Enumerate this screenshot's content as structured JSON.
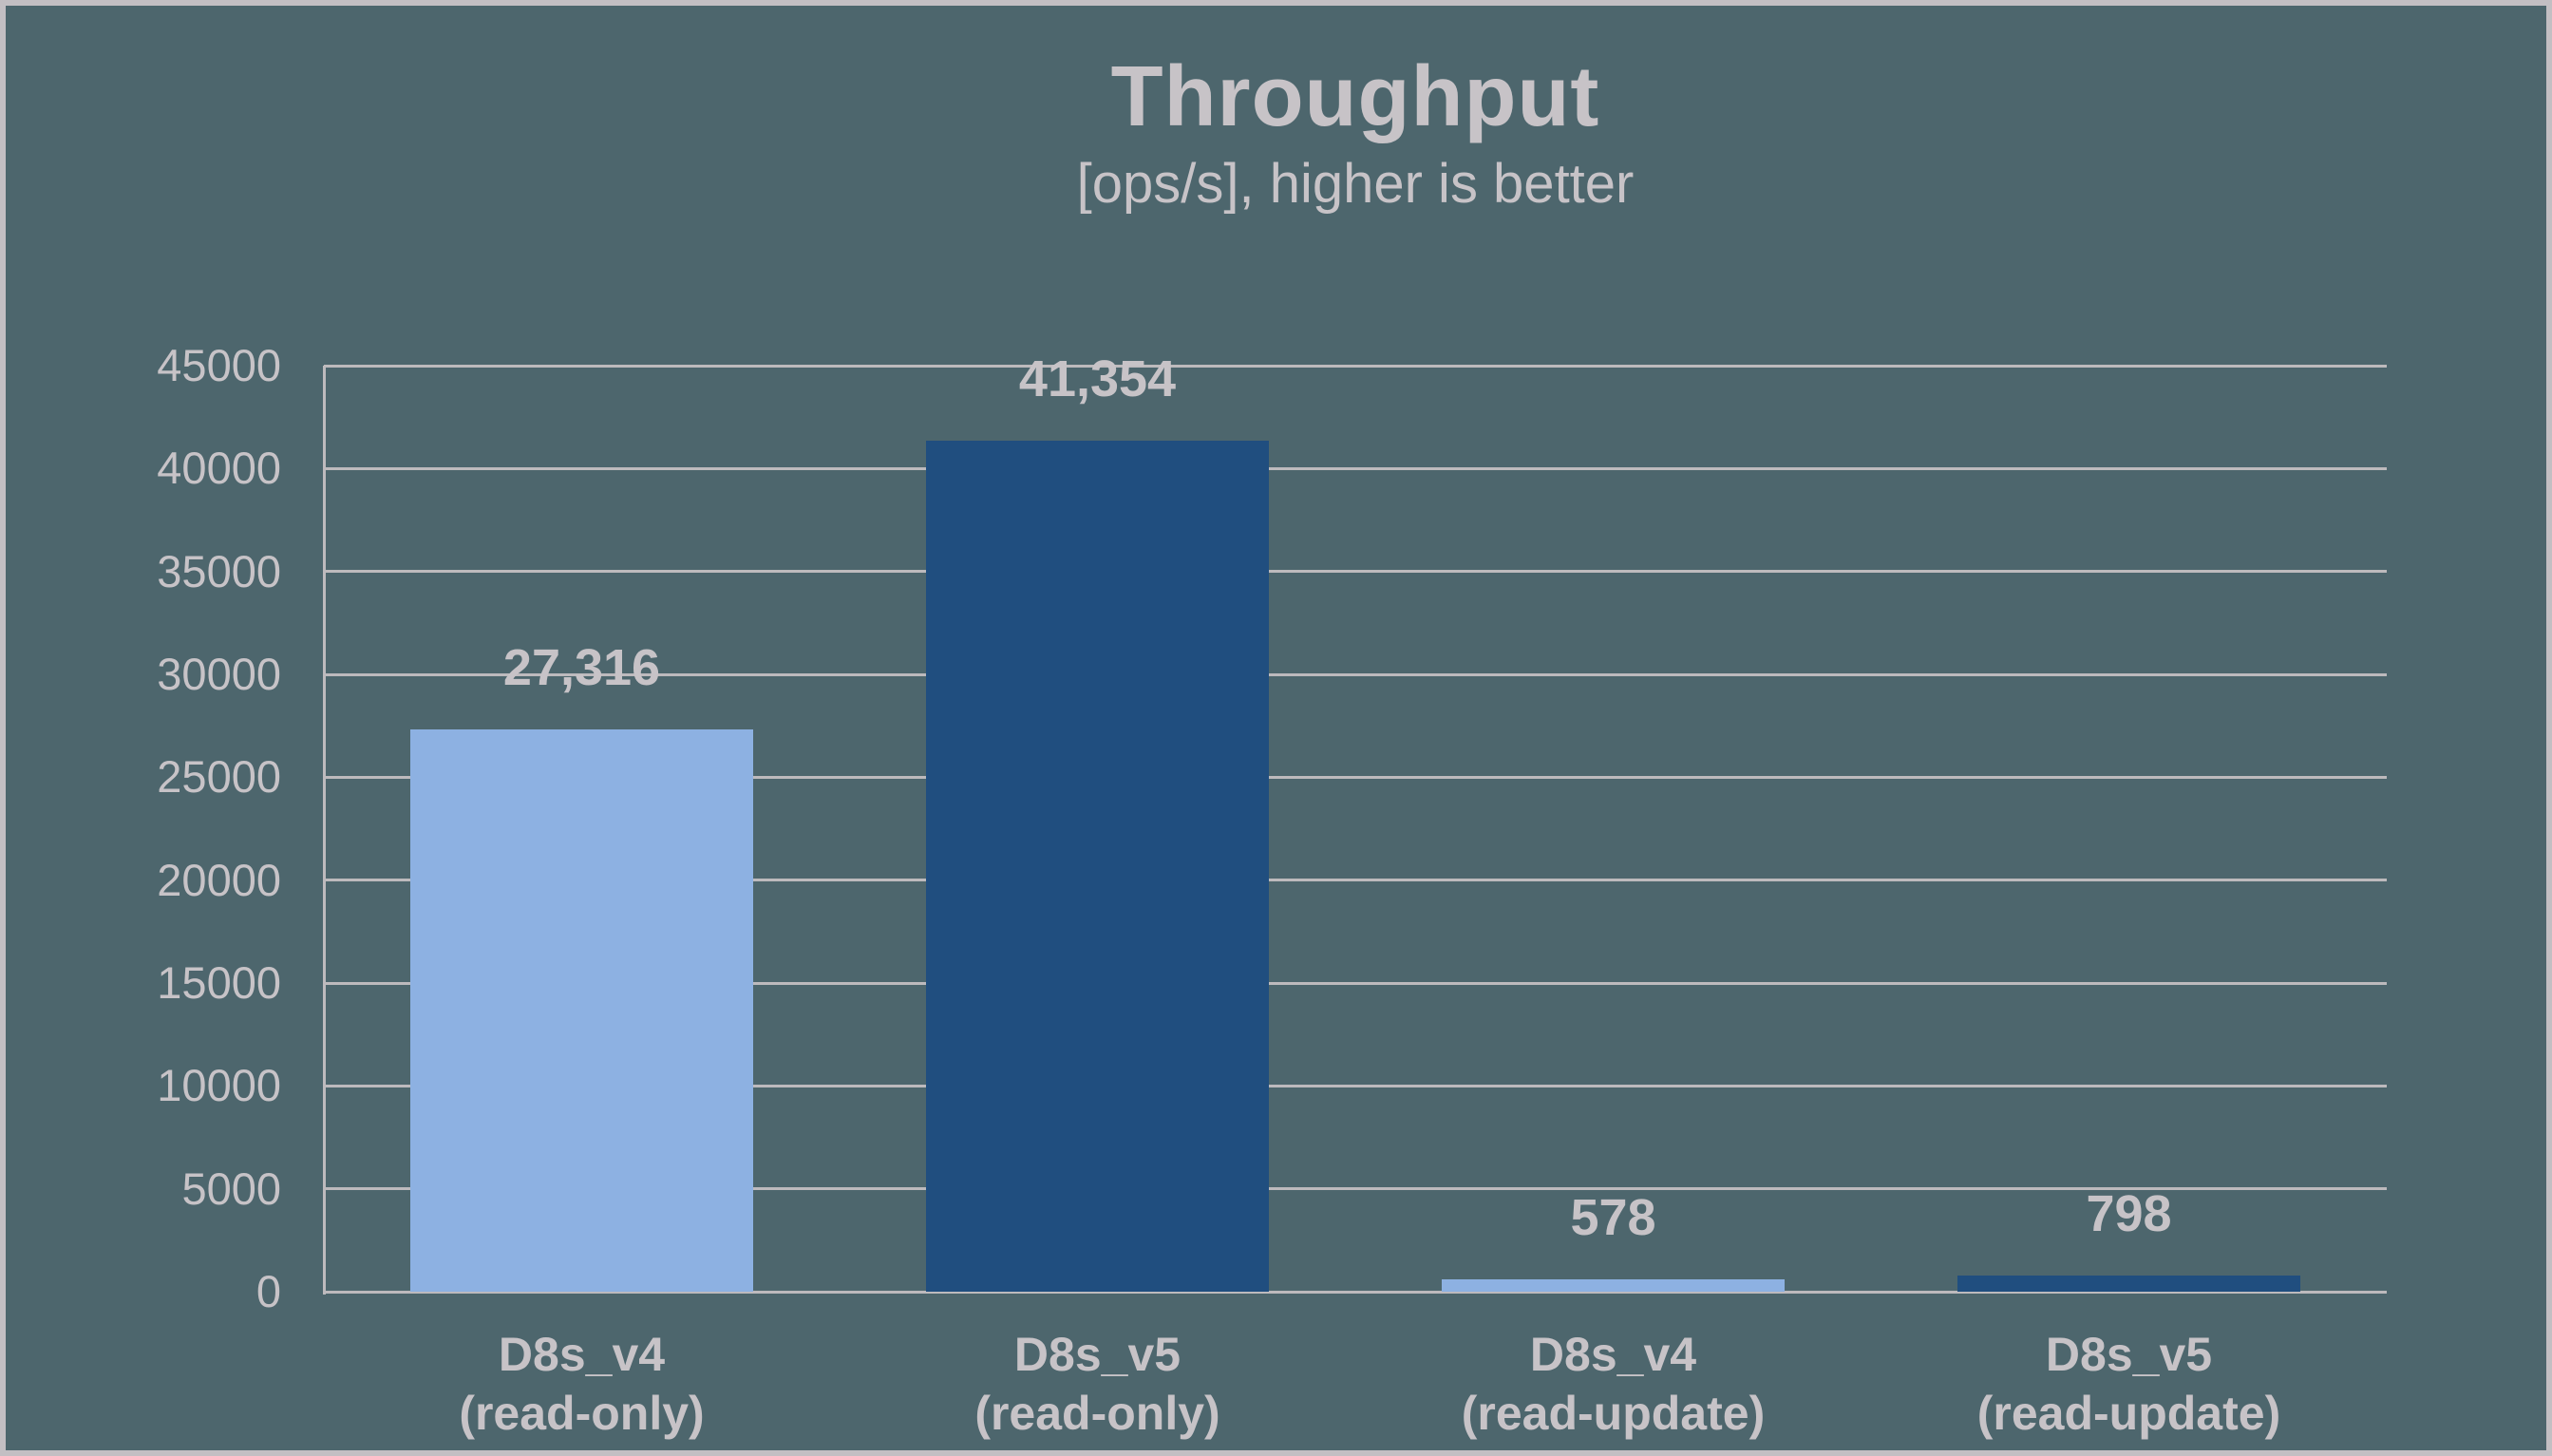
{
  "chart_data": {
    "type": "bar",
    "title": "Throughput",
    "subtitle": "[ops/s], higher is better",
    "ylabel": "",
    "xlabel": "",
    "ylim": [
      0,
      45000
    ],
    "ytick_step": 5000,
    "yticks": [
      0,
      5000,
      10000,
      15000,
      20000,
      25000,
      30000,
      35000,
      40000,
      45000
    ],
    "grid": true,
    "legend": null,
    "categories": [
      "D8s_v4 (read-only)",
      "D8s_v5 (read-only)",
      "D8s_v4 (read-update)",
      "D8s_v5 (read-update)"
    ],
    "values": [
      27316,
      41354,
      578,
      798
    ],
    "bars": [
      {
        "category_line1": "D8s_v4",
        "category_line2": "(read-only)",
        "value": 27316,
        "label": "27,316",
        "color": "#8db1e2"
      },
      {
        "category_line1": "D8s_v5",
        "category_line2": "(read-only)",
        "value": 41354,
        "label": "41,354",
        "color": "#204e7f"
      },
      {
        "category_line1": "D8s_v4",
        "category_line2": "(read-update)",
        "value": 578,
        "label": "578",
        "color": "#8db1e2"
      },
      {
        "category_line1": "D8s_v5",
        "category_line2": "(read-update)",
        "value": 798,
        "label": "798",
        "color": "#204e7f"
      }
    ],
    "colors": {
      "background": "#4d666d",
      "frame_border": "#c3bfc3",
      "gridline": "#bdbabd",
      "text": "#c7c3c7",
      "bar_light_blue": "#8db1e2",
      "bar_dark_blue": "#204e7f"
    }
  }
}
